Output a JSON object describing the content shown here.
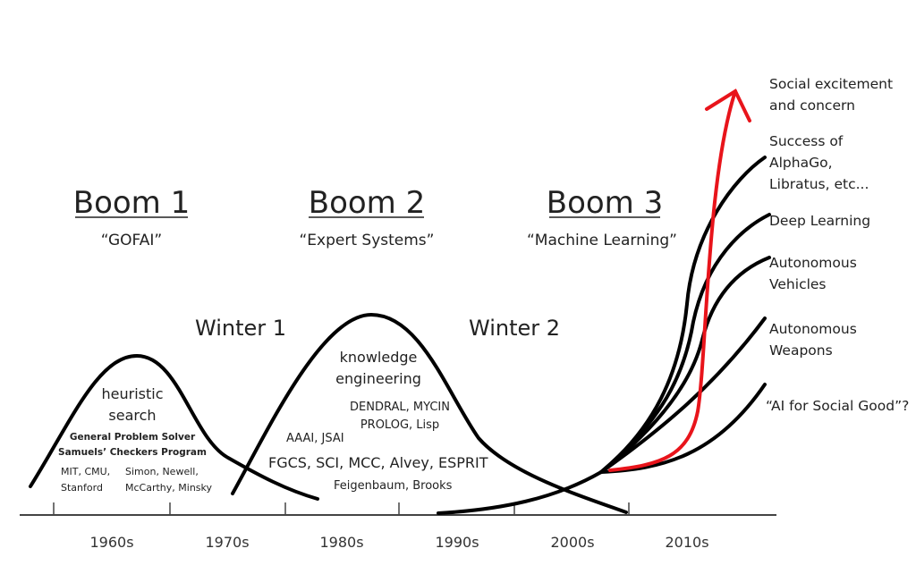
{
  "booms": [
    {
      "title": "Boom 1",
      "subtitle": "“GOFAI”"
    },
    {
      "title": "Boom 2",
      "subtitle": "“Expert Systems”"
    },
    {
      "title": "Boom 3",
      "subtitle": "“Machine Learning”"
    }
  ],
  "winters": [
    "Winter 1",
    "Winter 2"
  ],
  "boom1_notes": {
    "heading1": "heuristic",
    "heading2": "search",
    "line1": "General Problem Solver",
    "line2": "Samuels’ Checkers Program",
    "inst1": "MIT, CMU,",
    "inst2": "Stanford",
    "people1": "Simon, Newell,",
    "people2": "McCarthy, Minsky"
  },
  "boom2_notes": {
    "heading1": "knowledge",
    "heading2": "engineering",
    "systems1": "DENDRAL, MYCIN",
    "systems2": "PROLOG, Lisp",
    "orgs": "AAAI, JSAI",
    "programs": "FGCS, SCI, MCC, Alvey, ESPRIT",
    "people": "Feigenbaum, Brooks"
  },
  "axis_labels": [
    "1960s",
    "1970s",
    "1980s",
    "1990s",
    "2000s",
    "2010s"
  ],
  "trends": [
    {
      "line1": "Social excitement",
      "line2": "and concern",
      "color": "#e8141b"
    },
    {
      "line1": "Success of",
      "line2": "AlphaGo,",
      "line3": "Libratus, etc..."
    },
    {
      "line1": "Deep Learning"
    },
    {
      "line1": "Autonomous",
      "line2": "Vehicles"
    },
    {
      "line1": "Autonomous",
      "line2": "Weapons"
    },
    {
      "line1": "“AI for Social Good”?"
    }
  ]
}
